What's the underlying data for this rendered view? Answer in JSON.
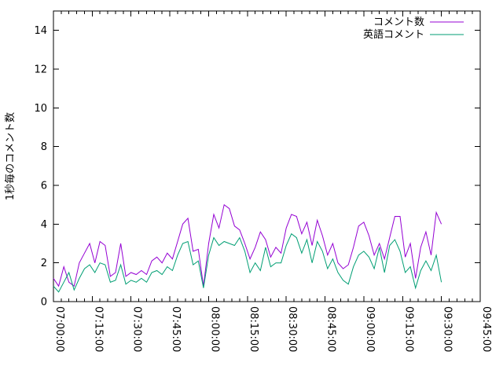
{
  "page": {
    "background": "#ffffff",
    "kind": "gnuplot line chart"
  },
  "chart_data": {
    "type": "line",
    "title": "",
    "xlabel": "",
    "ylabel": "1秒毎のコメント数",
    "grid": false,
    "legend_position": "top-right",
    "axis_color": "#000000",
    "text_color": "#000000",
    "ylim": [
      0,
      15
    ],
    "yticks": [
      0,
      2,
      4,
      6,
      8,
      10,
      12,
      14
    ],
    "x_axis": {
      "start": "07:00:00",
      "end": "09:45:00",
      "major_tick_interval_minutes": 15,
      "minor_tick_interval_minutes": 3,
      "tick_labels": [
        "07:00:00",
        "07:15:00",
        "07:30:00",
        "07:45:00",
        "08:00:00",
        "08:15:00",
        "08:30:00",
        "08:45:00",
        "09:00:00",
        "09:15:00",
        "09:30:00",
        "09:45:00"
      ],
      "tick_label_rotation_deg": 90
    },
    "x": [
      "07:00:00",
      "07:02:00",
      "07:04:00",
      "07:06:00",
      "07:08:00",
      "07:10:00",
      "07:12:00",
      "07:14:00",
      "07:16:00",
      "07:18:00",
      "07:20:00",
      "07:22:00",
      "07:24:00",
      "07:26:00",
      "07:28:00",
      "07:30:00",
      "07:32:00",
      "07:34:00",
      "07:36:00",
      "07:38:00",
      "07:40:00",
      "07:42:00",
      "07:44:00",
      "07:46:00",
      "07:48:00",
      "07:50:00",
      "07:52:00",
      "07:54:00",
      "07:56:00",
      "07:58:00",
      "08:00:00",
      "08:02:00",
      "08:04:00",
      "08:06:00",
      "08:08:00",
      "08:10:00",
      "08:12:00",
      "08:14:00",
      "08:16:00",
      "08:18:00",
      "08:20:00",
      "08:22:00",
      "08:24:00",
      "08:26:00",
      "08:28:00",
      "08:30:00",
      "08:32:00",
      "08:34:00",
      "08:36:00",
      "08:38:00",
      "08:40:00",
      "08:42:00",
      "08:44:00",
      "08:46:00",
      "08:48:00",
      "08:50:00",
      "08:52:00",
      "08:54:00",
      "08:56:00",
      "08:58:00",
      "09:00:00",
      "09:02:00",
      "09:04:00",
      "09:06:00",
      "09:08:00",
      "09:10:00",
      "09:12:00",
      "09:14:00",
      "09:16:00",
      "09:18:00",
      "09:20:00",
      "09:22:00",
      "09:24:00",
      "09:26:00",
      "09:28:00",
      "09:30:00"
    ],
    "series": [
      {
        "name": "コメント数",
        "color": "#9400d3",
        "values": [
          1.2,
          0.8,
          1.8,
          1.0,
          0.8,
          2.0,
          2.5,
          3.0,
          2.0,
          3.1,
          2.9,
          1.3,
          1.5,
          3.0,
          1.3,
          1.5,
          1.4,
          1.6,
          1.4,
          2.1,
          2.3,
          2.0,
          2.5,
          2.2,
          3.1,
          4.0,
          4.3,
          2.6,
          2.7,
          0.8,
          3.0,
          4.5,
          3.8,
          5.0,
          4.8,
          3.9,
          3.7,
          3.0,
          2.2,
          2.8,
          3.6,
          3.2,
          2.3,
          2.8,
          2.5,
          3.8,
          4.5,
          4.4,
          3.5,
          4.1,
          2.9,
          4.2,
          3.4,
          2.4,
          3.0,
          2.0,
          1.7,
          1.9,
          2.8,
          3.9,
          4.1,
          3.4,
          2.4,
          3.0,
          2.2,
          3.3,
          4.4,
          4.4,
          2.3,
          3.0,
          1.2,
          2.8,
          3.6,
          2.4,
          4.6,
          4.0
        ]
      },
      {
        "name": "英語コメント",
        "color": "#009e73",
        "values": [
          0.8,
          0.5,
          1.0,
          1.5,
          0.6,
          1.2,
          1.7,
          1.9,
          1.5,
          2.0,
          1.9,
          1.0,
          1.1,
          1.9,
          0.9,
          1.1,
          1.0,
          1.2,
          1.0,
          1.5,
          1.6,
          1.4,
          1.8,
          1.6,
          2.4,
          3.0,
          3.1,
          1.9,
          2.1,
          0.7,
          2.4,
          3.3,
          2.9,
          3.1,
          3.0,
          2.9,
          3.3,
          2.6,
          1.5,
          2.0,
          1.6,
          2.8,
          1.8,
          2.0,
          2.0,
          2.9,
          3.5,
          3.3,
          2.5,
          3.2,
          2.0,
          3.1,
          2.6,
          1.7,
          2.2,
          1.5,
          1.1,
          0.9,
          1.8,
          2.4,
          2.6,
          2.3,
          1.7,
          2.8,
          1.5,
          2.9,
          3.2,
          2.6,
          1.5,
          1.8,
          0.7,
          1.6,
          2.1,
          1.6,
          2.4,
          1.0
        ]
      }
    ]
  }
}
